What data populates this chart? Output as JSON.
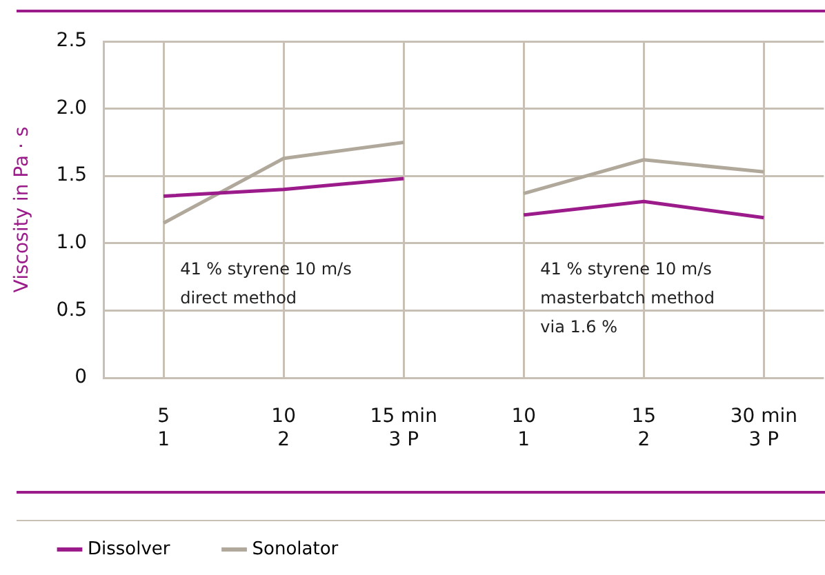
{
  "chart_data": {
    "type": "line",
    "ylabel": "Viscosity in Pa · s",
    "categories": [
      "5\n1",
      "10\n2",
      "15 min\n3 P",
      "10\n1",
      "15\n2",
      "30 min\n3 P"
    ],
    "series": [
      {
        "name": "Dissolver",
        "color": "#9b1b8a",
        "values": [
          1.35,
          1.4,
          1.48,
          1.21,
          1.31,
          1.19
        ]
      },
      {
        "name": "Sonolator",
        "color": "#b0a89a",
        "values": [
          1.15,
          1.63,
          1.75,
          1.37,
          1.62,
          1.53
        ]
      }
    ],
    "ylim": [
      0,
      2.5
    ],
    "yticks": [
      0,
      {
        "value": 0.5,
        "label": "0.5"
      },
      {
        "value": 1,
        "label": "1.0"
      },
      {
        "value": 1.5,
        "label": "1.5"
      },
      {
        "value": 2,
        "label": "2.0"
      },
      {
        "value": 2.5,
        "label": "2.5"
      }
    ],
    "grid": true,
    "legend": "bottom left",
    "marker": "none",
    "line_style": "solid",
    "annotations": [
      "41 % styrene 10 m/s\ndirect method",
      "41 % styrene 10 m/s\nmasterbatch method\nvia 1.6 %"
    ]
  }
}
